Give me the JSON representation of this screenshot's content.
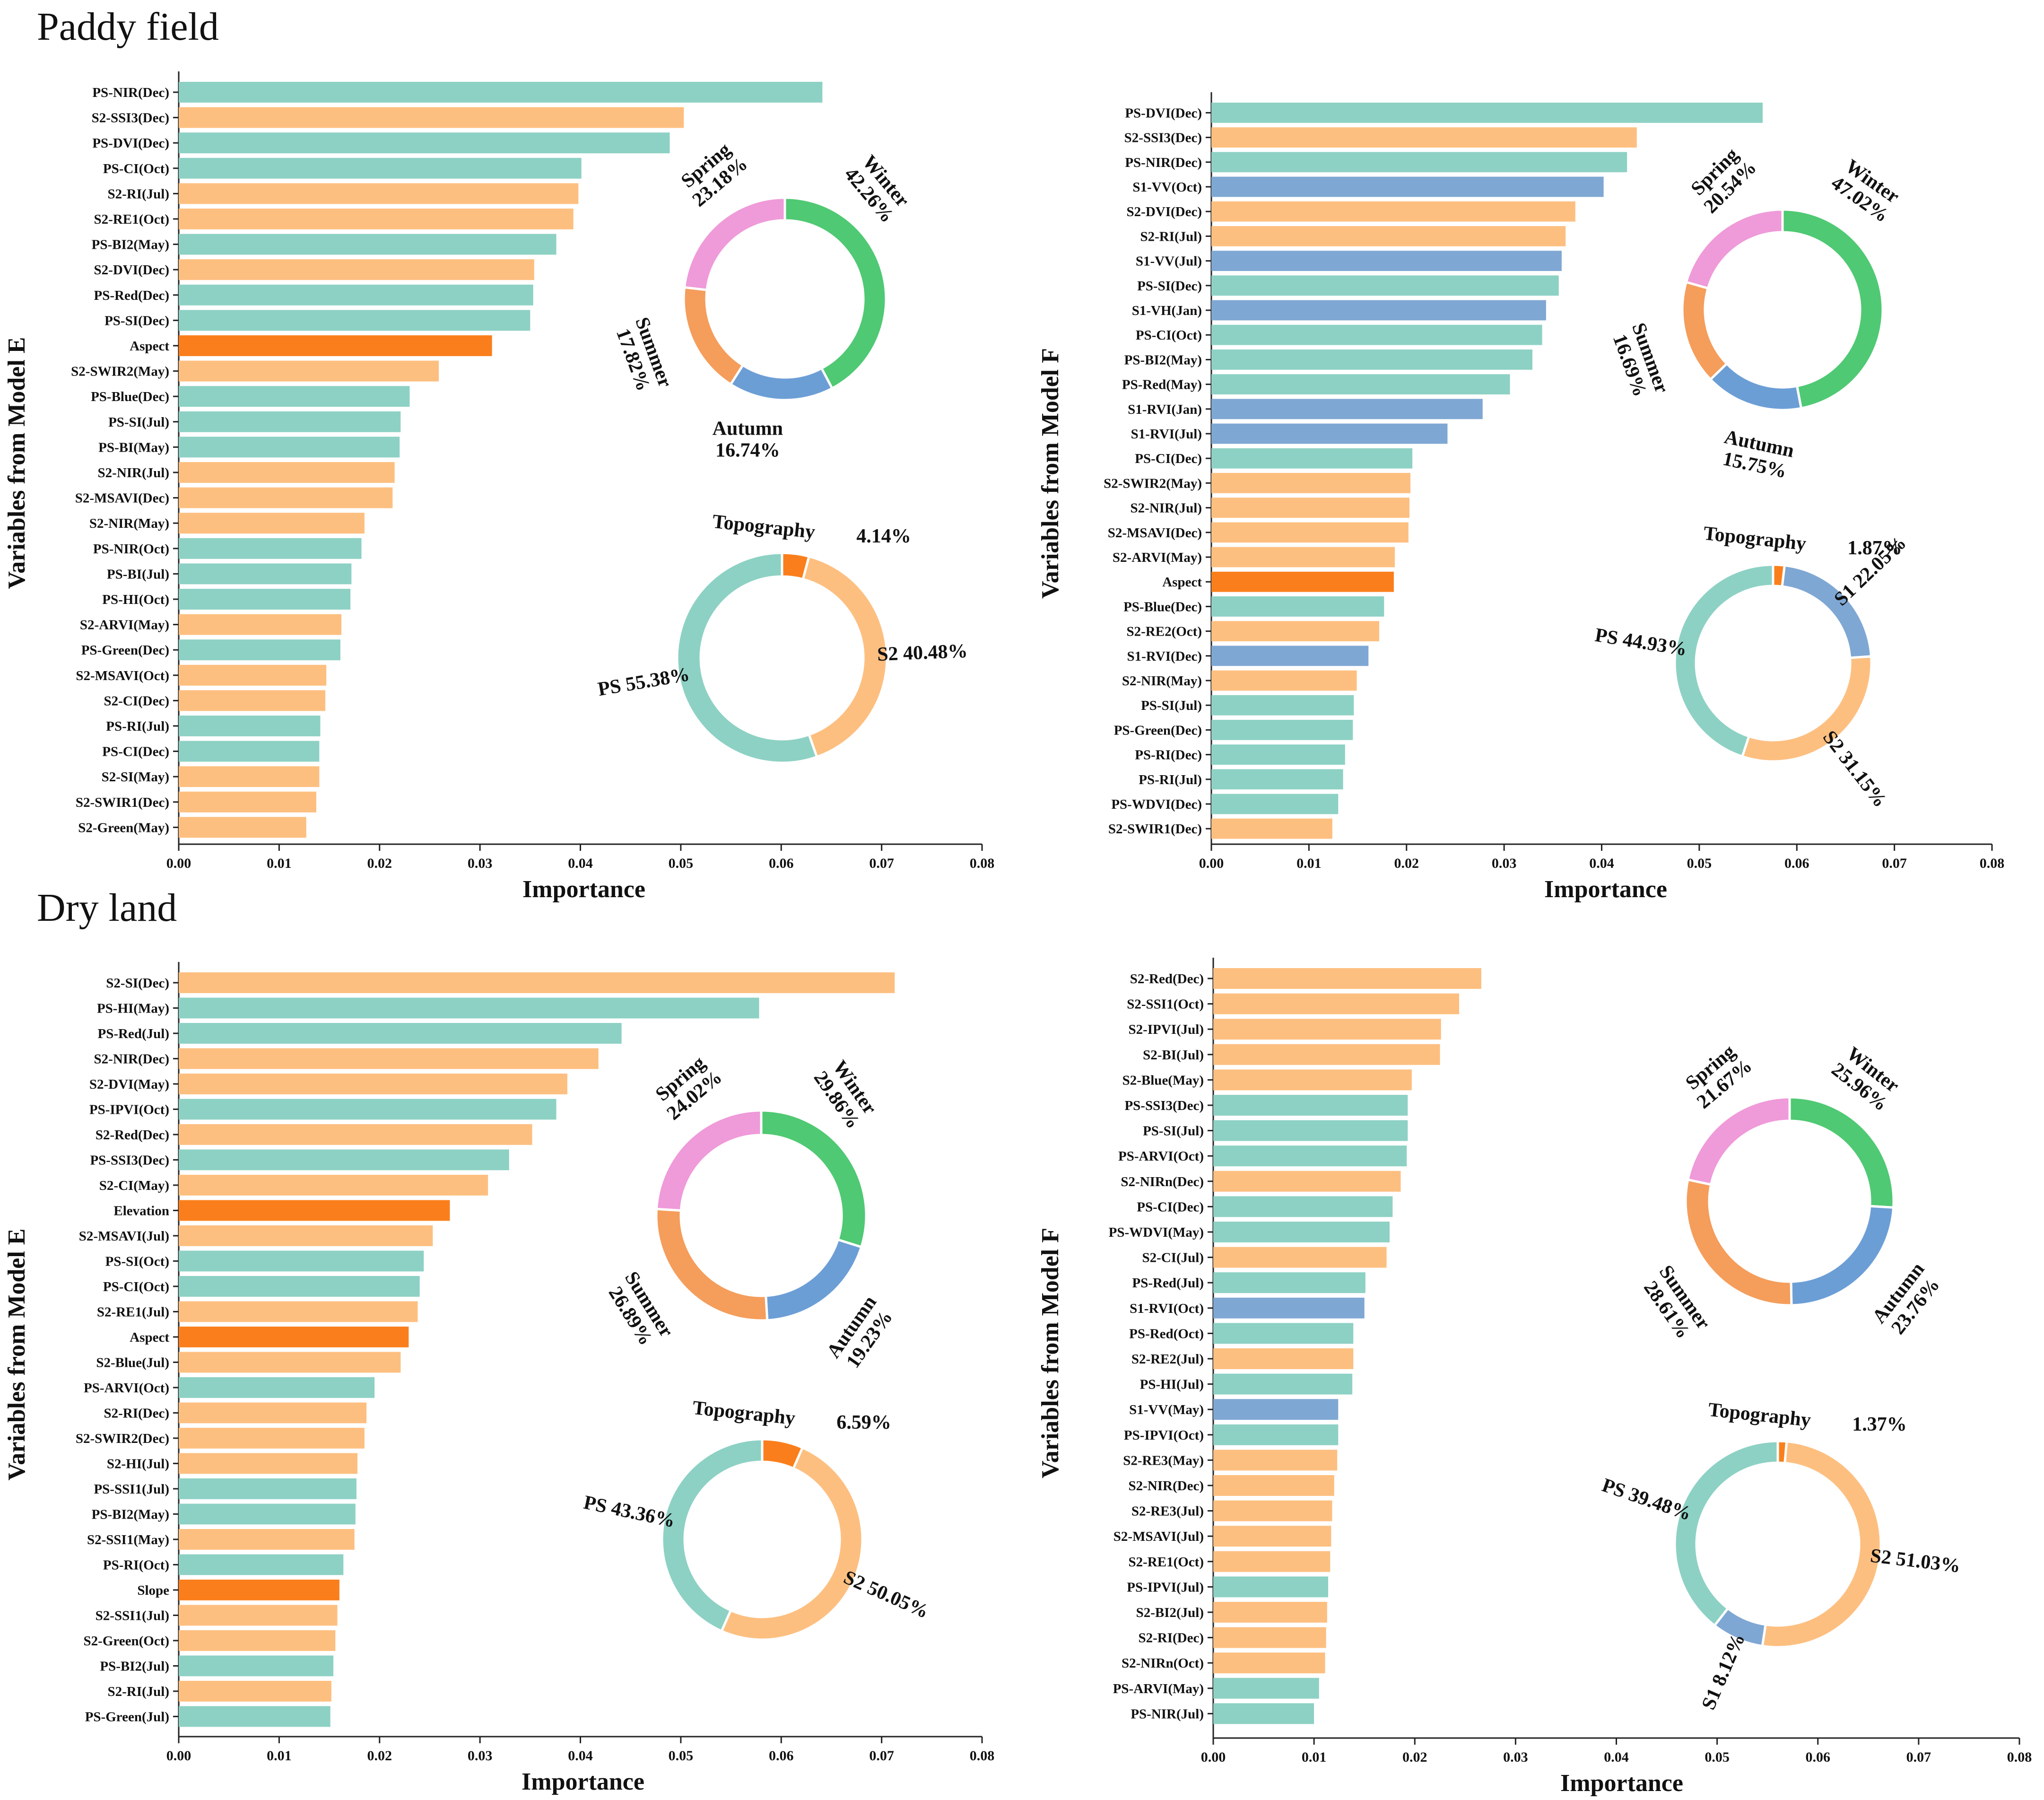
{
  "colors": {
    "PS": "#8dd1c4",
    "S2": "#fdbf80",
    "S1": "#7fa7d3",
    "Topography": "#fa7f1c",
    "Winter": "#4fc973",
    "Autumn": "#6c9ed6",
    "Summer": "#f59d5b",
    "Spring": "#ef9ad9"
  },
  "section_titles": [
    "Paddy field",
    "Dry land"
  ],
  "chart_data": [
    {
      "type": "bar",
      "panel": "paddy-model-e",
      "xlabel": "Importance",
      "ylabel": "Variables from Model E",
      "xlim": [
        0,
        0.08
      ],
      "xticks": [
        "0.00",
        "0.01",
        "0.02",
        "0.03",
        "0.04",
        "0.05",
        "0.06",
        "0.07",
        "0.08"
      ],
      "categories": [
        "PS-NIR(Dec)",
        "S2-SSI3(Dec)",
        "PS-DVI(Dec)",
        "PS-CI(Oct)",
        "S2-RI(Jul)",
        "S2-RE1(Oct)",
        "PS-BI2(May)",
        "S2-DVI(Dec)",
        "PS-Red(Dec)",
        "PS-SI(Dec)",
        "Aspect",
        "S2-SWIR2(May)",
        "PS-Blue(Dec)",
        "PS-SI(Jul)",
        "PS-BI(May)",
        "S2-NIR(Jul)",
        "S2-MSAVI(Dec)",
        "S2-NIR(May)",
        "PS-NIR(Oct)",
        "PS-BI(Jul)",
        "PS-HI(Oct)",
        "S2-ARVI(May)",
        "PS-Green(Dec)",
        "S2-MSAVI(Oct)",
        "S2-CI(Dec)",
        "PS-RI(Jul)",
        "PS-CI(Dec)",
        "S2-SI(May)",
        "S2-SWIR1(Dec)",
        "S2-Green(May)"
      ],
      "values": [
        0.0641,
        0.0503,
        0.0489,
        0.0401,
        0.0398,
        0.0393,
        0.0376,
        0.0354,
        0.0353,
        0.035,
        0.0312,
        0.0259,
        0.023,
        0.0221,
        0.022,
        0.0215,
        0.0213,
        0.0185,
        0.0182,
        0.0172,
        0.0171,
        0.0162,
        0.0161,
        0.0147,
        0.0146,
        0.0141,
        0.014,
        0.014,
        0.0137,
        0.0127
      ],
      "groups": [
        "PS",
        "S2",
        "PS",
        "PS",
        "S2",
        "S2",
        "PS",
        "S2",
        "PS",
        "PS",
        "Topography",
        "S2",
        "PS",
        "PS",
        "PS",
        "S2",
        "S2",
        "S2",
        "PS",
        "PS",
        "PS",
        "S2",
        "PS",
        "S2",
        "S2",
        "PS",
        "PS",
        "S2",
        "S2",
        "S2"
      ],
      "donuts": [
        {
          "name": "season",
          "labels": [
            "Winter",
            "Autumn",
            "Summer",
            "Spring"
          ],
          "values": [
            42.26,
            16.74,
            17.82,
            23.18
          ],
          "texts": [
            "Winter",
            "42.26%",
            "Autumn",
            "16.74%",
            "Summer",
            "17.82%",
            "Spring",
            "23.18%"
          ]
        },
        {
          "name": "source",
          "labels": [
            "Topography",
            "S2",
            "PS"
          ],
          "values": [
            4.14,
            40.48,
            55.38
          ],
          "texts": [
            "Topography",
            "4.14%",
            "S2 40.48%",
            "PS 55.38%"
          ]
        }
      ]
    },
    {
      "type": "bar",
      "panel": "paddy-model-f",
      "xlabel": "Importance",
      "ylabel": "Variables from Model F",
      "xlim": [
        0,
        0.08
      ],
      "xticks": [
        "0.00",
        "0.01",
        "0.02",
        "0.03",
        "0.04",
        "0.05",
        "0.06",
        "0.07",
        "0.08"
      ],
      "categories": [
        "PS-DVI(Dec)",
        "S2-SSI3(Dec)",
        "PS-NIR(Dec)",
        "S1-VV(Oct)",
        "S2-DVI(Dec)",
        "S2-RI(Jul)",
        "S1-VV(Jul)",
        "PS-SI(Dec)",
        "S1-VH(Jan)",
        "PS-CI(Oct)",
        "PS-BI2(May)",
        "PS-Red(May)",
        "S1-RVI(Jan)",
        "S1-RVI(Jul)",
        "PS-CI(Dec)",
        "S2-SWIR2(May)",
        "S2-NIR(Jul)",
        "S2-MSAVI(Dec)",
        "S2-ARVI(May)",
        "Aspect",
        "PS-Blue(Dec)",
        "S2-RE2(Oct)",
        "S1-RVI(Dec)",
        "S2-NIR(May)",
        "PS-SI(Jul)",
        "PS-Green(Dec)",
        "PS-RI(Dec)",
        "PS-RI(Jul)",
        "PS-WDVI(Dec)",
        "S2-SWIR1(Dec)"
      ],
      "values": [
        0.0565,
        0.0436,
        0.0426,
        0.0402,
        0.0373,
        0.0363,
        0.0359,
        0.0356,
        0.0343,
        0.0339,
        0.0329,
        0.0306,
        0.0278,
        0.0242,
        0.0206,
        0.0204,
        0.0203,
        0.0202,
        0.0188,
        0.0187,
        0.0177,
        0.0172,
        0.0161,
        0.0149,
        0.0146,
        0.0145,
        0.0137,
        0.0135,
        0.013,
        0.0124
      ],
      "groups": [
        "PS",
        "S2",
        "PS",
        "S1",
        "S2",
        "S2",
        "S1",
        "PS",
        "S1",
        "PS",
        "PS",
        "PS",
        "S1",
        "S1",
        "PS",
        "S2",
        "S2",
        "S2",
        "S2",
        "Topography",
        "PS",
        "S2",
        "S1",
        "S2",
        "PS",
        "PS",
        "PS",
        "PS",
        "PS",
        "S2"
      ],
      "donuts": [
        {
          "name": "season",
          "labels": [
            "Winter",
            "Autumn",
            "Summer",
            "Spring"
          ],
          "values": [
            47.02,
            15.75,
            16.69,
            20.54
          ],
          "texts": [
            "Winter",
            "47.02%",
            "Autumn",
            "15.75%",
            "Summer",
            "16.69%",
            "Spring",
            "20.54%"
          ]
        },
        {
          "name": "source",
          "labels": [
            "Topography",
            "S1",
            "S2",
            "PS"
          ],
          "values": [
            1.87,
            22.05,
            31.15,
            44.93
          ],
          "texts": [
            "Topography",
            "1.87%",
            "S1 22.05%",
            "S2 31.15%",
            "PS 44.93%"
          ]
        }
      ]
    },
    {
      "type": "bar",
      "panel": "dry-model-e",
      "xlabel": "Importance",
      "ylabel": "Variables from Model E",
      "xlim": [
        0,
        0.08
      ],
      "xticks": [
        "0.00",
        "0.01",
        "0.02",
        "0.03",
        "0.04",
        "0.05",
        "0.06",
        "0.07",
        "0.08"
      ],
      "categories": [
        "S2-SI(Dec)",
        "PS-HI(May)",
        "PS-Red(Jul)",
        "S2-NIR(Dec)",
        "S2-DVI(May)",
        "PS-IPVI(Oct)",
        "S2-Red(Dec)",
        "PS-SSI3(Dec)",
        "S2-CI(May)",
        "Elevation",
        "S2-MSAVI(Jul)",
        "PS-SI(Oct)",
        "PS-CI(Oct)",
        "S2-RE1(Jul)",
        "Aspect",
        "S2-Blue(Jul)",
        "PS-ARVI(Oct)",
        "S2-RI(Dec)",
        "S2-SWIR2(Dec)",
        "S2-HI(Jul)",
        "PS-SSI1(Jul)",
        "PS-BI2(May)",
        "S2-SSI1(May)",
        "PS-RI(Oct)",
        "Slope",
        "S2-SSI1(Jul)",
        "S2-Green(Oct)",
        "PS-BI2(Jul)",
        "S2-RI(Jul)",
        "PS-Green(Jul)"
      ],
      "values": [
        0.0713,
        0.0578,
        0.0441,
        0.0418,
        0.0387,
        0.0376,
        0.0352,
        0.0329,
        0.0308,
        0.027,
        0.0253,
        0.0244,
        0.024,
        0.0238,
        0.0229,
        0.0221,
        0.0195,
        0.0187,
        0.0185,
        0.0178,
        0.0177,
        0.0176,
        0.0175,
        0.0164,
        0.016,
        0.0158,
        0.0156,
        0.0154,
        0.0152,
        0.0151
      ],
      "groups": [
        "S2",
        "PS",
        "PS",
        "S2",
        "S2",
        "PS",
        "S2",
        "PS",
        "S2",
        "Topography",
        "S2",
        "PS",
        "PS",
        "S2",
        "Topography",
        "S2",
        "PS",
        "S2",
        "S2",
        "S2",
        "PS",
        "PS",
        "S2",
        "PS",
        "Topography",
        "S2",
        "S2",
        "PS",
        "S2",
        "PS"
      ],
      "donuts": [
        {
          "name": "season",
          "labels": [
            "Winter",
            "Autumn",
            "Summer",
            "Spring"
          ],
          "values": [
            29.86,
            19.23,
            26.89,
            24.02
          ],
          "texts": [
            "Winter",
            "29.86%",
            "Autumn",
            "19.23%",
            "Summer",
            "26.89%",
            "Spring",
            "24.02%"
          ]
        },
        {
          "name": "source",
          "labels": [
            "Topography",
            "S2",
            "PS"
          ],
          "values": [
            6.59,
            50.05,
            43.36
          ],
          "texts": [
            "Topography",
            "6.59%",
            "S2 50.05%",
            "PS 43.36%"
          ]
        }
      ]
    },
    {
      "type": "bar",
      "panel": "dry-model-f",
      "xlabel": "Importance",
      "ylabel": "Variables from Model F",
      "xlim": [
        0,
        0.08
      ],
      "xticks": [
        "0.00",
        "0.01",
        "0.02",
        "0.03",
        "0.04",
        "0.05",
        "0.06",
        "0.07",
        "0.08"
      ],
      "categories": [
        "S2-Red(Dec)",
        "S2-SSI1(Oct)",
        "S2-IPVI(Jul)",
        "S2-BI(Jul)",
        "S2-Blue(May)",
        "PS-SSI3(Dec)",
        "PS-SI(Jul)",
        "PS-ARVI(Oct)",
        "S2-NIRn(Dec)",
        "PS-CI(Dec)",
        "PS-WDVI(May)",
        "S2-CI(Jul)",
        "PS-Red(Jul)",
        "S1-RVI(Oct)",
        "PS-Red(Oct)",
        "S2-RE2(Jul)",
        "PS-HI(Jul)",
        "S1-VV(May)",
        "PS-IPVI(Oct)",
        "S2-RE3(May)",
        "S2-NIR(Dec)",
        "S2-RE3(Jul)",
        "S2-MSAVI(Jul)",
        "S2-RE1(Oct)",
        "PS-IPVI(Jul)",
        "S2-BI2(Jul)",
        "S2-RI(Dec)",
        "S2-NIRn(Oct)",
        "PS-ARVI(May)",
        "PS-NIR(Jul)"
      ],
      "values": [
        0.0266,
        0.0244,
        0.0226,
        0.0225,
        0.0197,
        0.0193,
        0.0193,
        0.0192,
        0.0186,
        0.0178,
        0.0175,
        0.0172,
        0.0151,
        0.015,
        0.0139,
        0.0139,
        0.0138,
        0.0124,
        0.0124,
        0.0123,
        0.012,
        0.0118,
        0.0117,
        0.0116,
        0.0114,
        0.0113,
        0.0112,
        0.0111,
        0.0105,
        0.01
      ],
      "groups": [
        "S2",
        "S2",
        "S2",
        "S2",
        "S2",
        "PS",
        "PS",
        "PS",
        "S2",
        "PS",
        "PS",
        "S2",
        "PS",
        "S1",
        "PS",
        "S2",
        "PS",
        "S1",
        "PS",
        "S2",
        "S2",
        "S2",
        "S2",
        "S2",
        "PS",
        "S2",
        "S2",
        "S2",
        "PS",
        "PS"
      ],
      "donuts": [
        {
          "name": "season",
          "labels": [
            "Winter",
            "Autumn",
            "Summer",
            "Spring"
          ],
          "values": [
            25.96,
            23.76,
            28.61,
            21.67
          ],
          "texts": [
            "Winter",
            "25.96%",
            "Autumn",
            "23.76%",
            "Summer",
            "28.61%",
            "Spring",
            "21.67%"
          ]
        },
        {
          "name": "source",
          "labels": [
            "Topography",
            "S2",
            "S1",
            "PS"
          ],
          "values": [
            1.37,
            51.03,
            8.12,
            39.48
          ],
          "texts": [
            "Topography",
            "1.37%",
            "S2 51.03%",
            "S1 8.12%",
            "PS 39.48%"
          ]
        }
      ]
    }
  ]
}
